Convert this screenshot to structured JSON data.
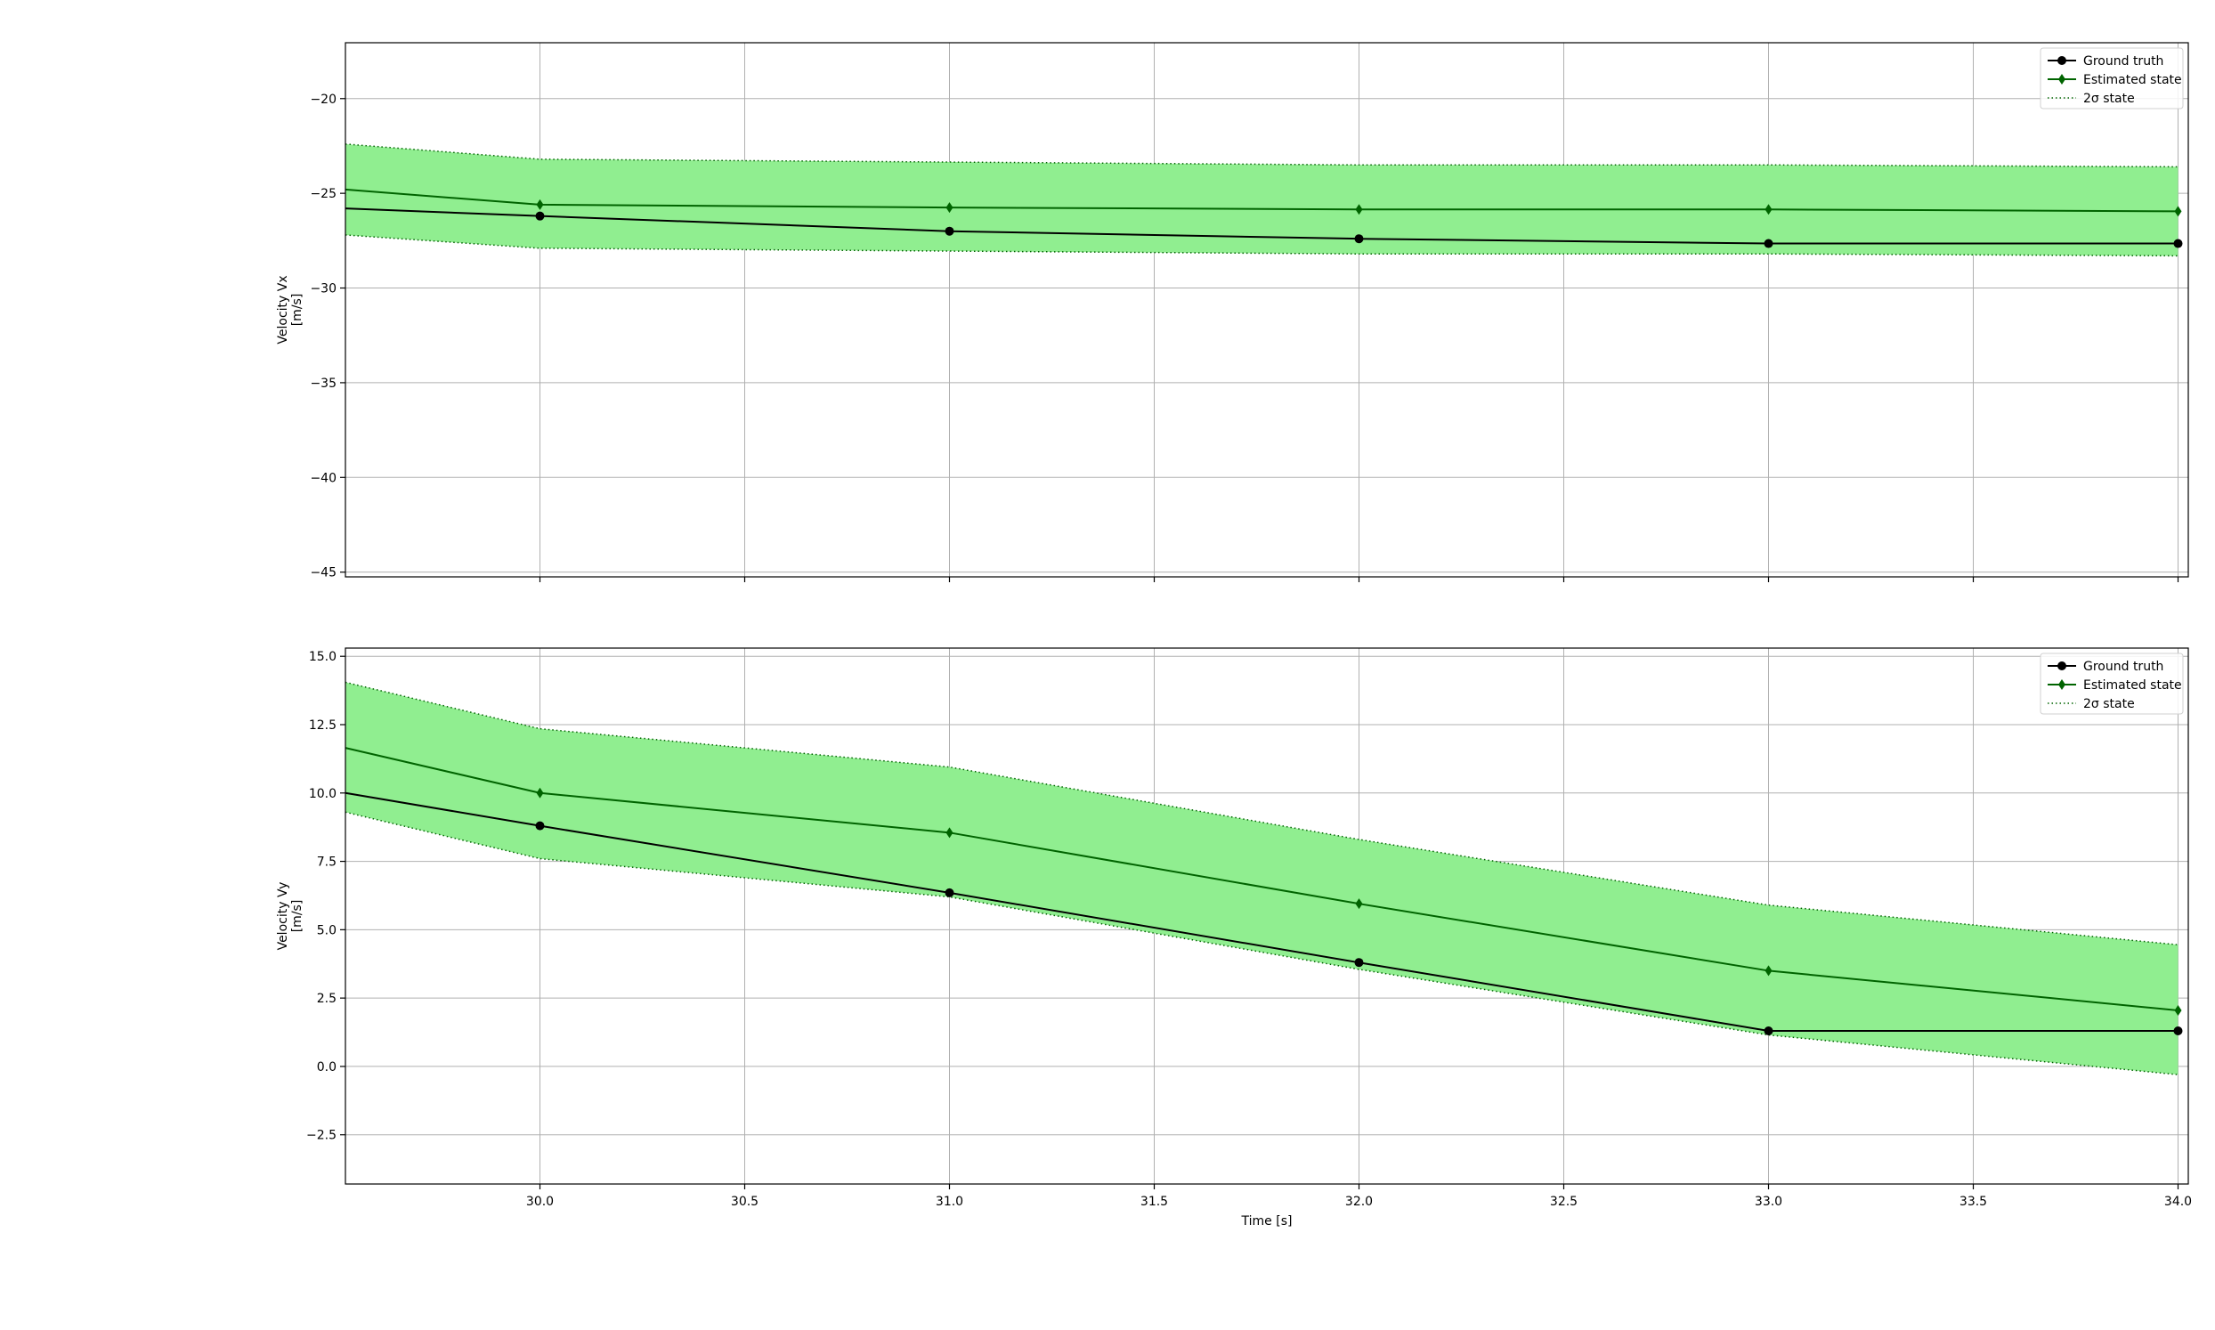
{
  "chart_data": [
    {
      "type": "line",
      "ylabel": [
        "Velocity Vx",
        "[m/s]"
      ],
      "xlabel": "",
      "xlim": [
        29.525,
        34.025
      ],
      "ylim": [
        -45.25,
        -17.05
      ],
      "xticks": [
        30.0,
        30.5,
        31.0,
        31.5,
        32.0,
        32.5,
        33.0,
        33.5,
        34.0
      ],
      "xtick_labels_shown": false,
      "yticks": [
        -20,
        -25,
        -30,
        -35,
        -40,
        -45
      ],
      "ytick_labels": [
        "−20",
        "−25",
        "−30",
        "−35",
        "−40",
        "−45"
      ],
      "grid": true,
      "legend_position": "top-right",
      "x": [
        29.525,
        30.0,
        31.0,
        32.0,
        33.0,
        34.0
      ],
      "series": [
        {
          "name": "Ground truth",
          "style": "ground-truth",
          "color": "#000000",
          "values": [
            -25.8,
            -26.2,
            -27.0,
            -27.4,
            -27.65,
            -27.65
          ],
          "marker_from": 1
        },
        {
          "name": "Estimated state",
          "style": "estimated",
          "color": "#006400",
          "values": [
            -24.8,
            -25.6,
            -25.75,
            -25.85,
            -25.85,
            -25.95
          ],
          "marker_from": 1
        }
      ],
      "band": {
        "name": "2σ state",
        "fill": "#90ee90",
        "line_color": "#006400",
        "upper": [
          -22.4,
          -23.2,
          -23.35,
          -23.5,
          -23.5,
          -23.6
        ],
        "lower": [
          -27.2,
          -27.9,
          -28.05,
          -28.2,
          -28.2,
          -28.3
        ]
      }
    },
    {
      "type": "line",
      "ylabel": [
        "Velocity Vy",
        "[m/s]"
      ],
      "xlabel": "Time [s]",
      "xlim": [
        29.525,
        34.025
      ],
      "ylim": [
        -4.3,
        15.3
      ],
      "xticks": [
        30.0,
        30.5,
        31.0,
        31.5,
        32.0,
        32.5,
        33.0,
        33.5,
        34.0
      ],
      "xtick_labels": [
        "30.0",
        "30.5",
        "31.0",
        "31.5",
        "32.0",
        "32.5",
        "33.0",
        "33.5",
        "34.0"
      ],
      "xtick_labels_shown": true,
      "yticks": [
        15.0,
        12.5,
        10.0,
        7.5,
        5.0,
        2.5,
        0.0,
        -2.5
      ],
      "ytick_labels": [
        "15.0",
        "12.5",
        "10.0",
        "7.5",
        "5.0",
        "2.5",
        "0.0",
        "−2.5"
      ],
      "grid": true,
      "legend_position": "top-right",
      "x": [
        29.525,
        30.0,
        31.0,
        32.0,
        33.0,
        34.0
      ],
      "series": [
        {
          "name": "Ground truth",
          "style": "ground-truth",
          "color": "#000000",
          "values": [
            10.0,
            8.8,
            6.35,
            3.8,
            1.3,
            1.3
          ],
          "marker_from": 1
        },
        {
          "name": "Estimated state",
          "style": "estimated",
          "color": "#006400",
          "values": [
            11.65,
            10.0,
            8.55,
            5.95,
            3.5,
            2.05
          ],
          "marker_from": 1
        }
      ],
      "band": {
        "name": "2σ state",
        "fill": "#90ee90",
        "line_color": "#006400",
        "upper": [
          14.05,
          12.35,
          10.95,
          8.3,
          5.9,
          4.45
        ],
        "lower": [
          9.3,
          7.6,
          6.2,
          3.55,
          1.15,
          -0.3
        ]
      }
    }
  ]
}
